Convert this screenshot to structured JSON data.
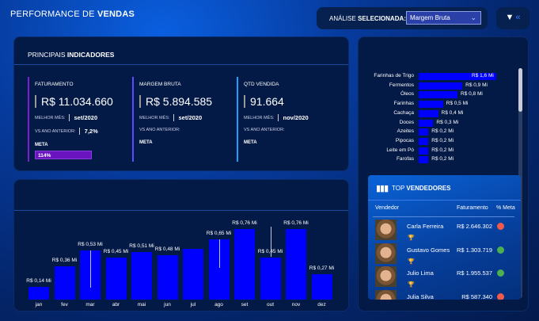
{
  "header": {
    "title_prefix": "PERFORMANCE DE ",
    "title_bold": "VENDAS",
    "analysis_label_prefix": "ANÁLISE ",
    "analysis_label_bold": "SELECIONADA:",
    "analysis_value": "Margem Bruta"
  },
  "indicators": {
    "title_prefix": "PRINCIPAIS ",
    "title_bold": "INDICADORES",
    "kpis": [
      {
        "title": "FATURAMENTO",
        "value": "R$ 11.034.660",
        "best_label": "MELHOR MÊS:",
        "best": "set/2020",
        "vs_label": "VS ANO ANTERIOR:",
        "vs": "7,2%",
        "meta_label": "META",
        "meta": "114%",
        "color": "#7b1fd0"
      },
      {
        "title": "MARGEM BRUTA",
        "value": "R$ 5.894.585",
        "best_label": "MELHOR MÊS:",
        "best": "set/2020",
        "vs_label": "VS ANO ANTERIOR:",
        "vs": "",
        "meta_label": "META",
        "meta": "",
        "color": "#5a4cff"
      },
      {
        "title": "QTD VENDIDA",
        "value": "91.664",
        "best_label": "MELHOR MÊS:",
        "best": "nov/2020",
        "vs_label": "VS ANO ANTERIOR:",
        "vs": "",
        "meta_label": "META",
        "meta": "",
        "color": "#1ea0ff"
      }
    ]
  },
  "chart_data": [
    {
      "type": "bar",
      "title": "",
      "categories": [
        "jan",
        "fev",
        "mar",
        "abr",
        "mai",
        "jun",
        "jul",
        "ago",
        "set",
        "out",
        "nov",
        "dez"
      ],
      "values": [
        0.14,
        0.36,
        0.53,
        0.45,
        0.51,
        0.48,
        0.55,
        0.65,
        0.76,
        0.45,
        0.76,
        0.27
      ],
      "labels": [
        "R$ 0,14 Mi",
        "R$ 0,36 Mi",
        "R$ 0,53 Mi",
        "R$ 0,45 Mi",
        "R$ 0,51 Mi",
        "R$ 0,48 Mi",
        "",
        "R$ 0,65 Mi",
        "R$ 0,76 Mi",
        "R$ 0,45 Mi",
        "R$ 0,76 Mi",
        "R$ 0,27 Mi"
      ],
      "ylabel": "R$ Mi",
      "color": "#0000ff"
    },
    {
      "type": "bar",
      "orientation": "horizontal",
      "categories": [
        "Farinhas de Trigo",
        "Fermentos",
        "Óleos",
        "Farinhas",
        "Cachaça",
        "Doces",
        "Azeites",
        "Pipocas",
        "Leite em Pó",
        "Farofas"
      ],
      "values": [
        1.6,
        0.9,
        0.8,
        0.5,
        0.4,
        0.3,
        0.2,
        0.2,
        0.2,
        0.2
      ],
      "labels": [
        "R$ 1,6 Mi",
        "R$ 0,9 Mi",
        "R$ 0,8 Mi",
        "R$ 0,5 Mi",
        "R$ 0,4 Mi",
        "R$ 0,3 Mi",
        "R$ 0,2 Mi",
        "R$ 0,2 Mi",
        "R$ 0,2 Mi",
        "R$ 0,2 Mi"
      ]
    }
  ],
  "sellers": {
    "title_prefix": "TOP ",
    "title_bold": "VENDEDORES",
    "columns": [
      "Vendedor",
      "Faturamento",
      "% Meta"
    ],
    "rows": [
      {
        "name": "Carla Ferreira",
        "revenue": "R$ 2.646.302",
        "status": "#f05a4a",
        "trophy": "#e0a020"
      },
      {
        "name": "Gustavo Gomes",
        "revenue": "R$ 1.303.719",
        "status": "#4caf50",
        "trophy": "#c0c0c0"
      },
      {
        "name": "Julio Lima",
        "revenue": "R$ 1.955.537",
        "status": "#4caf50",
        "trophy": "#cd7f32"
      },
      {
        "name": "Julia Silva",
        "revenue": "R$ 587.340",
        "status": "#f05a4a",
        "trophy": ""
      }
    ]
  }
}
